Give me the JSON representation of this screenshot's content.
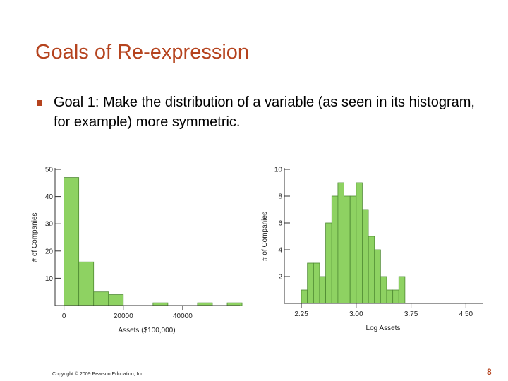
{
  "slide": {
    "title": "Goals of Re-expression",
    "bullet": "Goal 1: Make the distribution of a variable (as seen in its histogram, for example) more symmetric.",
    "footer": "Copyright © 2009 Pearson Education, Inc.",
    "page_number": "8",
    "title_color": "#b5431e",
    "bar_color": "#8ed262"
  },
  "chart_data": [
    {
      "type": "bar",
      "xlabel": "Assets ($100,000)",
      "ylabel": "# of Companies",
      "xticks": [
        "0",
        "20000",
        "40000"
      ],
      "yticks": [
        "10",
        "20",
        "30",
        "40",
        "50"
      ],
      "ylim": [
        0,
        50
      ],
      "bin_width": 5000,
      "bin_starts": [
        0,
        5000,
        10000,
        15000,
        20000,
        25000,
        30000,
        35000,
        40000,
        45000,
        50000,
        55000
      ],
      "values": [
        47,
        16,
        5,
        4,
        0,
        0,
        1,
        0,
        0,
        1,
        0,
        1
      ]
    },
    {
      "type": "bar",
      "xlabel": "Log Assets",
      "ylabel": "# of Companies",
      "xticks": [
        "2.25",
        "3.00",
        "3.75",
        "4.50"
      ],
      "yticks": [
        "2",
        "4",
        "6",
        "8",
        "10"
      ],
      "ylim": [
        0,
        10
      ],
      "bin_width": 0.083,
      "bin_starts": [
        2.25,
        2.333,
        2.417,
        2.5,
        2.583,
        2.667,
        2.75,
        2.833,
        2.917,
        3.0,
        3.083,
        3.167,
        3.25,
        3.333,
        3.417,
        3.5,
        3.583,
        3.667,
        3.75,
        3.833,
        3.917,
        4.0,
        4.083,
        4.167,
        4.25,
        4.333
      ],
      "values": [
        1,
        3,
        3,
        2,
        6,
        8,
        9,
        8,
        8,
        9,
        7,
        5,
        4,
        2,
        1,
        1,
        2,
        0,
        0,
        0,
        0,
        0,
        0,
        0,
        0,
        0
      ]
    }
  ]
}
